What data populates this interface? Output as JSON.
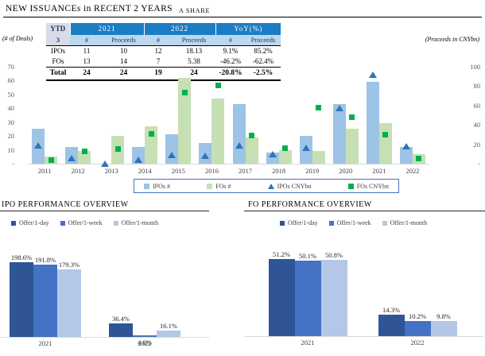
{
  "page": {
    "title": "NEW ISSUANCEs in RECENT 2 YEARS",
    "subtitle": "A SHARE"
  },
  "colors": {
    "table_header_bg": "#1C7DC4",
    "table_header_text": "#FFFFFF",
    "table_subheader_bg": "#BDD7EE",
    "table_corner_bg": "#D8DCE8",
    "legend_border": "#4472C4",
    "axis_line": "#D9D9D9"
  },
  "summary_table": {
    "period_label": "YTD",
    "period_value": "3",
    "unit_note_left": "(# of Deals)",
    "unit_note_right": "(Proceeds in CNYbn)",
    "column_groups": [
      "2021",
      "2022",
      "YoY(%)"
    ],
    "sub_headers": [
      "#",
      "Proceeds",
      "#",
      "Proceeds",
      "#",
      "Proceeds"
    ],
    "rows": [
      {
        "label": "IPOs",
        "values": [
          "11",
          "10",
          "12",
          "18.13",
          "9.1%",
          "85.2%"
        ]
      },
      {
        "label": "FOs",
        "values": [
          "13",
          "14",
          "7",
          "5.38",
          "-46.2%",
          "-62.4%"
        ]
      },
      {
        "label": "Total",
        "values": [
          "24",
          "24",
          "19",
          "24",
          "-20.8%",
          "-2.5%"
        ]
      }
    ]
  },
  "sections": {
    "ipo_title": "IPO PERFORMANCE OVERVIEW",
    "fo_title": "FO PERFORMANCE OVERVIEW"
  },
  "chart_data": [
    {
      "id": "new-issuance-combo",
      "type": "bar",
      "subtype": "bars-with-scatter-markers",
      "categories": [
        "2011",
        "2012",
        "2013",
        "2014",
        "2015",
        "2016",
        "2017",
        "2018",
        "2019",
        "2020",
        "2021",
        "2022"
      ],
      "series": [
        {
          "name": "IPOs #",
          "type": "bar",
          "axis": "left",
          "color": "#9DC3E6",
          "values": [
            25,
            12,
            0,
            12,
            21,
            15,
            43,
            8,
            20,
            43,
            59,
            12
          ]
        },
        {
          "name": "FOs #",
          "type": "bar",
          "axis": "left",
          "color": "#C6E0B4",
          "values": [
            5,
            9,
            20,
            27,
            62,
            47,
            19,
            10,
            9,
            25,
            29,
            7
          ]
        },
        {
          "name": "IPOs CNYbn",
          "type": "scatter",
          "marker": "triangle",
          "axis": "right",
          "color": "#2E75B6",
          "values": [
            19,
            6,
            0,
            4,
            9,
            8,
            19,
            10,
            16,
            57,
            92,
            18.13
          ]
        },
        {
          "name": "FOs CNYbn",
          "type": "scatter",
          "marker": "square",
          "axis": "right",
          "color": "#00B050",
          "values": [
            4,
            13,
            15,
            31,
            73,
            81,
            29,
            16,
            58,
            48,
            30,
            5.38
          ]
        }
      ],
      "left_ylim": [
        0,
        70
      ],
      "right_ylim": [
        0,
        100
      ],
      "left_ticks": [
        "70",
        "60",
        "50",
        "40",
        "30",
        "20",
        "10",
        "-"
      ],
      "right_ticks": [
        "100",
        "80",
        "60",
        "40",
        "20",
        "-"
      ],
      "grid": false,
      "legend_position": "bottom"
    },
    {
      "id": "ipo-performance",
      "type": "bar",
      "title": "IPO PERFORMANCE OVERVIEW",
      "categories": [
        "2021",
        "2022"
      ],
      "series": [
        {
          "name": "Offer/1-day",
          "color": "#2F5597",
          "values": [
            198.6,
            36.4
          ],
          "labels": [
            "198.6%",
            "36.4%"
          ]
        },
        {
          "name": "Offer/1-week",
          "color": "#4472C4",
          "values": [
            191.8,
            4.0
          ],
          "labels": [
            "191.8%",
            "4.0%"
          ]
        },
        {
          "name": "Offer/1-month",
          "color": "#B4C7E7",
          "values": [
            179.3,
            16.1
          ],
          "labels": [
            "179.3%",
            "16.1%"
          ]
        }
      ],
      "data_labels": true,
      "legend_position": "top"
    },
    {
      "id": "fo-performance",
      "type": "bar",
      "title": "FO PERFORMANCE OVERVIEW",
      "categories": [
        "2021",
        "2022"
      ],
      "series": [
        {
          "name": "Offer/1-day",
          "color": "#2F5597",
          "values": [
            51.2,
            14.3
          ],
          "labels": [
            "51.2%",
            "14.3%"
          ]
        },
        {
          "name": "Offer/1-week",
          "color": "#4472C4",
          "values": [
            50.1,
            10.2
          ],
          "labels": [
            "50.1%",
            "10.2%"
          ]
        },
        {
          "name": "Offer/1-month",
          "color": "#B4C7E7",
          "values": [
            50.8,
            9.8
          ],
          "labels": [
            "50.8%",
            "9.8%"
          ]
        }
      ],
      "data_labels": true,
      "legend_position": "top"
    }
  ]
}
